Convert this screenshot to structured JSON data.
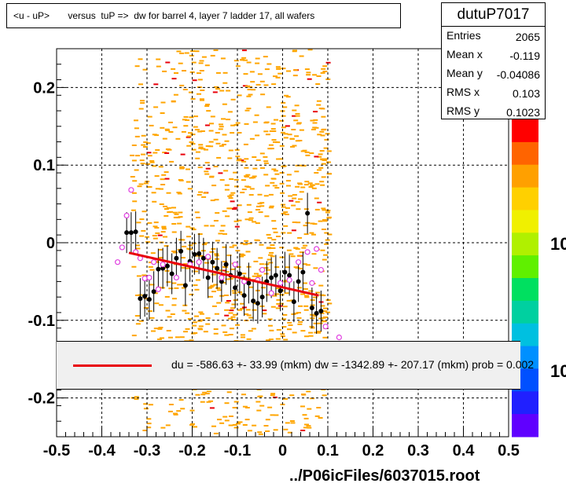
{
  "title": "<u - uP>       versus  tuP =>  dw for barrel 4, layer 7 ladder 17, all wafers",
  "stats": {
    "name": "dutuP7017",
    "rows": [
      {
        "label": "Entries",
        "value": "2065"
      },
      {
        "label": "Mean x",
        "value": "-0.119"
      },
      {
        "label": "Mean y",
        "value": "-0.04086"
      },
      {
        "label": "RMS x",
        "value": "0.103"
      },
      {
        "label": "RMS y",
        "value": "0.1023"
      }
    ]
  },
  "fit_text": "du = -586.63 +- 33.99 (mkm) dw = -1342.89 +- 207.17 (mkm) prob = 0.002",
  "file_label": "../P06icFiles/6037015.root",
  "z_labels": [
    "10",
    "10"
  ],
  "colors": {
    "fit_line": "#e8000b",
    "hist": "#ffa500",
    "hist_hot": "#e8000b",
    "profile": "#000000",
    "profile_open": "#e040e0"
  },
  "chart_data": {
    "type": "scatter",
    "xlim": [
      -0.5,
      0.5
    ],
    "ylim": [
      -0.25,
      0.25
    ],
    "xticks": [
      "-0.5",
      "-0.4",
      "-0.3",
      "-0.2",
      "-0.1",
      "0",
      "0.1",
      "0.2",
      "0.3",
      "0.4",
      "0.5"
    ],
    "yticks": [
      "0.2",
      "0.1",
      "0",
      "-0.1",
      "-0.2"
    ],
    "grid": true,
    "fit": {
      "x": [
        -0.34,
        0.08
      ],
      "y": [
        -0.013,
        -0.068
      ]
    },
    "profile_filled": [
      [
        -0.345,
        0.013
      ],
      [
        -0.335,
        0.013
      ],
      [
        -0.325,
        0.014
      ],
      [
        -0.315,
        -0.072
      ],
      [
        -0.305,
        -0.069
      ],
      [
        -0.295,
        -0.073
      ],
      [
        -0.285,
        -0.063
      ],
      [
        -0.275,
        -0.034
      ],
      [
        -0.265,
        -0.033
      ],
      [
        -0.255,
        -0.03
      ],
      [
        -0.245,
        -0.04
      ],
      [
        -0.235,
        -0.02
      ],
      [
        -0.225,
        -0.011
      ],
      [
        -0.215,
        -0.055
      ],
      [
        -0.205,
        -0.024
      ],
      [
        -0.195,
        -0.015
      ],
      [
        -0.185,
        -0.014
      ],
      [
        -0.175,
        -0.02
      ],
      [
        -0.165,
        -0.045
      ],
      [
        -0.155,
        -0.025
      ],
      [
        -0.145,
        -0.033
      ],
      [
        -0.135,
        -0.05
      ],
      [
        -0.125,
        -0.028
      ],
      [
        -0.115,
        -0.042
      ],
      [
        -0.105,
        -0.058
      ],
      [
        -0.095,
        -0.04
      ],
      [
        -0.085,
        -0.068
      ],
      [
        -0.075,
        -0.052
      ],
      [
        -0.065,
        -0.075
      ],
      [
        -0.055,
        -0.078
      ],
      [
        -0.045,
        -0.07
      ],
      [
        -0.035,
        -0.05
      ],
      [
        -0.025,
        -0.045
      ],
      [
        -0.015,
        -0.042
      ],
      [
        -0.005,
        -0.062
      ],
      [
        0.005,
        -0.038
      ],
      [
        0.015,
        -0.042
      ],
      [
        0.025,
        -0.076
      ],
      [
        0.035,
        -0.05
      ],
      [
        0.045,
        -0.038
      ],
      [
        0.055,
        0.038
      ],
      [
        0.065,
        -0.084
      ],
      [
        0.075,
        -0.091
      ],
      [
        0.085,
        -0.088
      ]
    ],
    "profile_open": [
      [
        -0.365,
        -0.025
      ],
      [
        -0.355,
        -0.006
      ],
      [
        -0.345,
        0.035
      ],
      [
        -0.335,
        0.068
      ],
      [
        -0.325,
        -0.012
      ],
      [
        -0.315,
        -0.02
      ],
      [
        -0.305,
        -0.046
      ],
      [
        -0.295,
        -0.045
      ],
      [
        -0.285,
        -0.025
      ],
      [
        -0.275,
        -0.06
      ],
      [
        -0.265,
        -0.028
      ],
      [
        -0.235,
        -0.045
      ],
      [
        -0.205,
        -0.028
      ],
      [
        -0.185,
        -0.025
      ],
      [
        -0.165,
        -0.018
      ],
      [
        -0.135,
        -0.045
      ],
      [
        -0.105,
        -0.028
      ],
      [
        -0.085,
        -0.05
      ],
      [
        -0.055,
        -0.048
      ],
      [
        -0.045,
        -0.035
      ],
      [
        -0.025,
        -0.065
      ],
      [
        -0.005,
        -0.052
      ],
      [
        0.015,
        -0.048
      ],
      [
        0.035,
        -0.025
      ],
      [
        0.055,
        -0.012
      ],
      [
        0.065,
        -0.052
      ],
      [
        0.075,
        -0.008
      ],
      [
        0.085,
        -0.035
      ],
      [
        0.095,
        -0.108
      ],
      [
        0.125,
        -0.122
      ]
    ]
  }
}
